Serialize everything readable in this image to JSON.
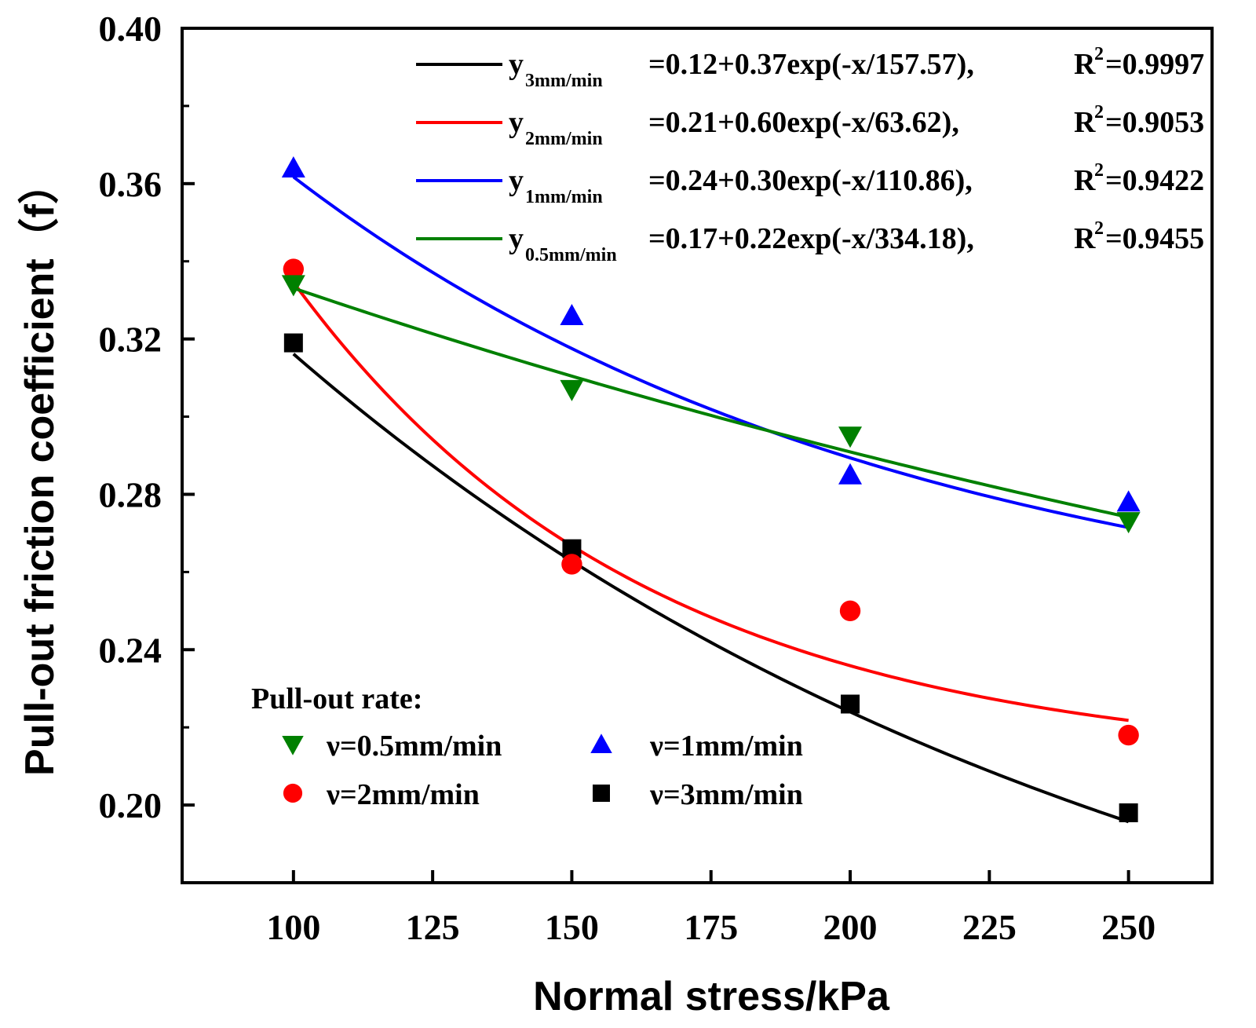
{
  "chart_data": {
    "type": "scatter",
    "xlabel": "Normal stress/kPa",
    "ylabel": "Pull-out friction coefficient（f）",
    "xlim": [
      80,
      265
    ],
    "ylim": [
      0.18,
      0.4
    ],
    "xticks": [
      100,
      125,
      150,
      175,
      200,
      225,
      250
    ],
    "xtick_labels": [
      "100",
      "125",
      "150",
      "175",
      "200",
      "225",
      "250"
    ],
    "yticks": [
      0.2,
      0.24,
      0.28,
      0.32,
      0.36,
      0.4
    ],
    "ytick_labels": [
      "0.20",
      "0.24",
      "0.28",
      "0.32",
      "0.36",
      "0.40"
    ],
    "series": [
      {
        "name": "ν=3mm/min",
        "color": "#000000",
        "marker": "square",
        "x": [
          100,
          150,
          200,
          250
        ],
        "values": [
          0.319,
          0.266,
          0.226,
          0.198
        ],
        "fit": {
          "y0": 0.12,
          "a": 0.37,
          "t": 157.57
        },
        "fit_label": "y",
        "fit_subscript": "3mm/min",
        "fit_equation": "=0.12+0.37exp(-x/157.57),",
        "r2_label": "R",
        "r2_sup": "2",
        "r2_value": "=0.9997"
      },
      {
        "name": "ν=2mm/min",
        "color": "#ff0000",
        "marker": "circle",
        "x": [
          100,
          150,
          200,
          250
        ],
        "values": [
          0.338,
          0.262,
          0.25,
          0.218
        ],
        "fit": {
          "y0": 0.21,
          "a": 0.6,
          "t": 63.62
        },
        "fit_label": "y",
        "fit_subscript": "2mm/min",
        "fit_equation": "=0.21+0.60exp(-x/63.62),",
        "r2_label": "R",
        "r2_sup": "2",
        "r2_value": "=0.9053"
      },
      {
        "name": "ν=1mm/min",
        "color": "#0000ff",
        "marker": "triangle-up",
        "x": [
          100,
          150,
          200,
          250
        ],
        "values": [
          0.364,
          0.326,
          0.285,
          0.278
        ],
        "fit": {
          "y0": 0.24,
          "a": 0.3,
          "t": 110.86
        },
        "fit_label": "y",
        "fit_subscript": "1mm/min",
        "fit_equation": "=0.24+0.30exp(-x/110.86),",
        "r2_label": "R",
        "r2_sup": "2",
        "r2_value": "=0.9422"
      },
      {
        "name": "ν=0.5mm/min",
        "color": "#008000",
        "marker": "triangle-down",
        "x": [
          100,
          150,
          200,
          250
        ],
        "values": [
          0.334,
          0.307,
          0.295,
          0.273
        ],
        "fit": {
          "y0": 0.17,
          "a": 0.22,
          "t": 334.18
        },
        "fit_label": "y",
        "fit_subscript": "0.5mm/min",
        "fit_equation": "=0.17+0.22exp(-x/334.18),",
        "r2_label": "R",
        "r2_sup": "2",
        "r2_value": "=0.9455"
      }
    ],
    "fit_legend_order": [
      "ν=3mm/min",
      "ν=2mm/min",
      "ν=1mm/min",
      "ν=0.5mm/min"
    ],
    "marker_legend_title": "Pull-out rate:",
    "marker_legend_order": [
      "ν=0.5mm/min",
      "ν=1mm/min",
      "ν=2mm/min",
      "ν=3mm/min"
    ],
    "legend_position": "top-right (fit equations), bottom-left (markers)"
  }
}
